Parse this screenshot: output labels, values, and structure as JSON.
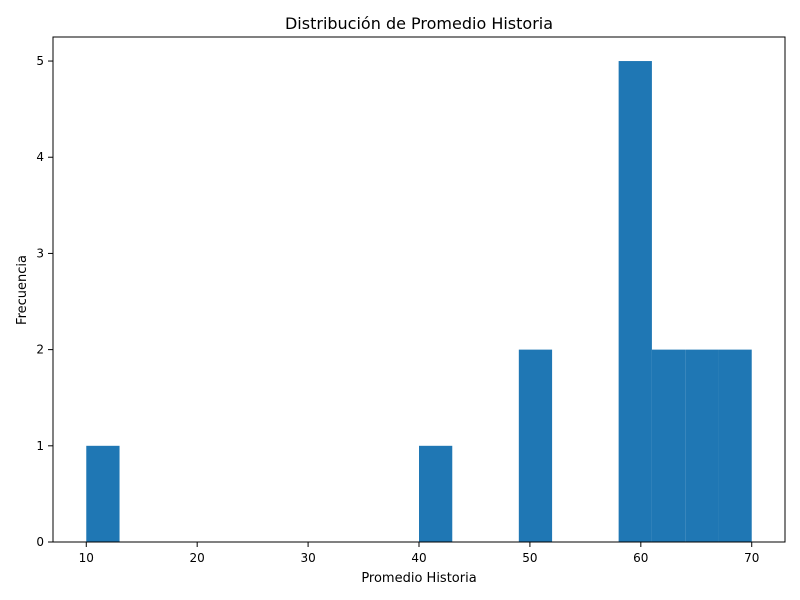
{
  "chart_data": {
    "type": "bar",
    "title": "Distribución de Promedio Historia",
    "xlabel": "Promedio Historia",
    "ylabel": "Frecuencia",
    "xlim": [
      7,
      73
    ],
    "ylim": [
      0,
      5.25
    ],
    "xticks": [
      10,
      20,
      30,
      40,
      50,
      60,
      70
    ],
    "yticks": [
      0,
      1,
      2,
      3,
      4,
      5
    ],
    "bar_color": "#1f77b4",
    "grid": false,
    "bins": [
      {
        "x0": 10,
        "x1": 13,
        "count": 1
      },
      {
        "x0": 40,
        "x1": 43,
        "count": 1
      },
      {
        "x0": 49,
        "x1": 52,
        "count": 2
      },
      {
        "x0": 58,
        "x1": 61,
        "count": 5
      },
      {
        "x0": 61,
        "x1": 64,
        "count": 2
      },
      {
        "x0": 64,
        "x1": 67,
        "count": 2
      },
      {
        "x0": 67,
        "x1": 70,
        "count": 2
      }
    ]
  }
}
